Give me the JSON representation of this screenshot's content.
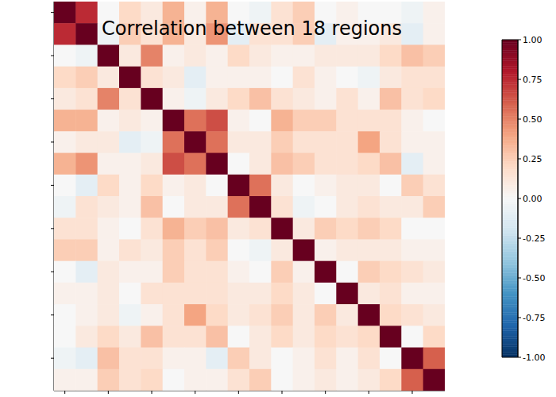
{
  "chart_data": {
    "type": "heatmap",
    "title": "Correlation between 18 regions",
    "tick_labels": false,
    "xlim": [
      -0.5,
      17.5
    ],
    "ylim": [
      -0.5,
      17.5
    ],
    "xticks": [
      0,
      2,
      4,
      6,
      8,
      10,
      12,
      14,
      16
    ],
    "yticks": [
      0,
      2,
      4,
      6,
      8,
      10,
      12,
      14,
      16
    ],
    "matrix": [
      [
        1,
        0.75,
        0.0,
        0.2,
        0.1,
        0.35,
        0.05,
        0.35,
        0.0,
        -0.05,
        0.15,
        0.25,
        0.0,
        0.05,
        0.0,
        0.0,
        -0.05,
        0.05
      ],
      [
        0.75,
        1,
        -0.05,
        0.25,
        0.15,
        0.35,
        0.1,
        0.45,
        -0.1,
        0.15,
        0.15,
        0.25,
        -0.1,
        0.05,
        0.05,
        0.1,
        -0.1,
        0.05
      ],
      [
        0.0,
        -0.05,
        1,
        0.1,
        0.5,
        0.05,
        0.1,
        0.05,
        0.2,
        0.1,
        0.05,
        0.05,
        0.1,
        0.1,
        0.1,
        0.2,
        0.3,
        0.25
      ],
      [
        0.2,
        0.25,
        0.1,
        1,
        0.15,
        0.1,
        -0.1,
        0.05,
        0.05,
        0.05,
        0.0,
        0.15,
        0.05,
        0.0,
        -0.05,
        0.1,
        0.15,
        0.15
      ],
      [
        0.1,
        0.15,
        0.5,
        0.15,
        1,
        0.05,
        -0.05,
        0.1,
        0.2,
        0.3,
        0.15,
        0.1,
        0.05,
        0.15,
        0.05,
        0.3,
        0.15,
        0.2
      ],
      [
        0.35,
        0.35,
        0.05,
        0.1,
        0.05,
        1,
        0.55,
        0.65,
        0.05,
        0.0,
        0.35,
        0.25,
        0.25,
        0.15,
        0.15,
        0.15,
        0.05,
        0.0
      ],
      [
        0.05,
        0.1,
        0.1,
        -0.1,
        -0.05,
        0.55,
        1,
        0.55,
        0.1,
        0.1,
        0.25,
        0.15,
        0.15,
        0.15,
        0.4,
        0.15,
        0.05,
        0.05
      ],
      [
        0.35,
        0.45,
        0.05,
        0.05,
        0.1,
        0.65,
        0.55,
        1,
        0.0,
        0.1,
        0.3,
        0.25,
        0.15,
        0.15,
        0.2,
        0.3,
        -0.1,
        0.05
      ],
      [
        0.0,
        -0.1,
        0.2,
        0.05,
        0.2,
        0.05,
        0.1,
        0.0,
        1,
        0.55,
        0.1,
        0.0,
        0.05,
        0.1,
        0.1,
        0.0,
        0.25,
        0.15
      ],
      [
        -0.05,
        0.15,
        0.1,
        0.05,
        0.3,
        0.0,
        0.1,
        0.1,
        0.55,
        1,
        0.15,
        -0.05,
        0.0,
        0.1,
        0.15,
        0.1,
        0.1,
        0.25
      ],
      [
        0.15,
        0.15,
        0.05,
        0.0,
        0.15,
        0.35,
        0.25,
        0.3,
        0.1,
        0.15,
        1,
        0.1,
        0.25,
        0.2,
        0.25,
        0.2,
        0.0,
        0.0
      ],
      [
        0.25,
        0.25,
        0.05,
        0.15,
        0.1,
        0.25,
        0.15,
        0.25,
        0.0,
        -0.05,
        0.1,
        1,
        0.05,
        0.1,
        0.1,
        0.1,
        0.05,
        0.05
      ],
      [
        0.0,
        -0.1,
        0.1,
        0.05,
        0.05,
        0.25,
        0.15,
        0.15,
        0.05,
        0.0,
        0.25,
        0.05,
        1,
        0.0,
        0.25,
        0.2,
        0.15,
        0.1
      ],
      [
        0.05,
        0.05,
        0.1,
        0.0,
        0.15,
        0.15,
        0.15,
        0.15,
        0.1,
        0.1,
        0.2,
        0.1,
        0.0,
        1,
        0.1,
        0.15,
        0.05,
        0.05
      ],
      [
        0.0,
        0.05,
        0.1,
        -0.05,
        0.05,
        0.15,
        0.4,
        0.2,
        0.1,
        0.15,
        0.25,
        0.1,
        0.25,
        0.1,
        1,
        0.2,
        0.15,
        0.1
      ],
      [
        0.0,
        0.1,
        0.2,
        0.1,
        0.3,
        0.15,
        0.15,
        0.3,
        0.0,
        0.1,
        0.2,
        0.1,
        0.2,
        0.15,
        0.2,
        1,
        0.0,
        0.2
      ],
      [
        -0.05,
        -0.1,
        0.3,
        0.15,
        0.15,
        0.05,
        0.05,
        -0.1,
        0.25,
        0.1,
        0.0,
        0.05,
        0.15,
        0.05,
        0.15,
        0.0,
        1,
        0.6
      ],
      [
        0.05,
        0.05,
        0.25,
        0.15,
        0.2,
        0.0,
        0.05,
        0.05,
        0.15,
        0.25,
        0.0,
        0.05,
        0.1,
        0.05,
        0.1,
        0.2,
        0.6,
        1
      ]
    ],
    "colorbar": {
      "range": [
        -1,
        1
      ],
      "ticks": [
        {
          "value": -1,
          "label": "-1.00"
        },
        {
          "value": -0.75,
          "label": "-0.75"
        },
        {
          "value": -0.5,
          "label": "-0.50"
        },
        {
          "value": -0.25,
          "label": "-0.25"
        },
        {
          "value": 0,
          "label": "0.00"
        },
        {
          "value": 0.25,
          "label": "0.25"
        },
        {
          "value": 0.5,
          "label": "0.50"
        },
        {
          "value": 0.75,
          "label": "0.75"
        },
        {
          "value": 1,
          "label": "1.00"
        }
      ]
    }
  }
}
